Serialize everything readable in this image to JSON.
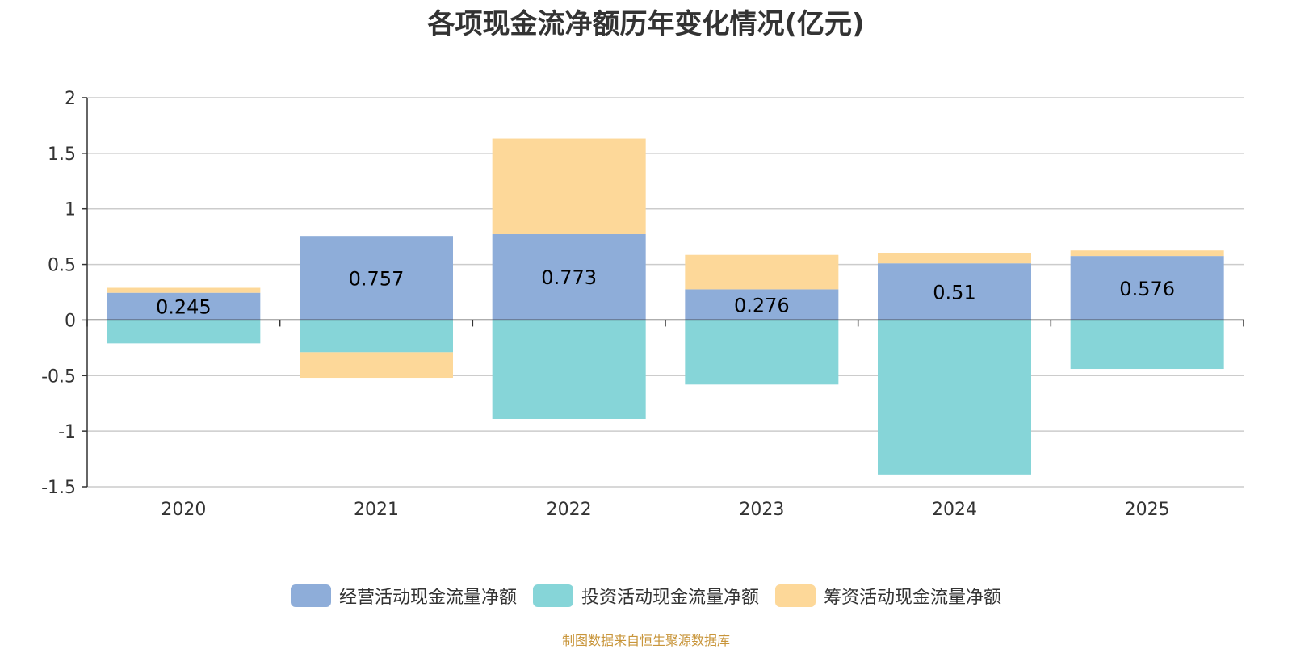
{
  "chart_data": {
    "type": "bar",
    "stacked": true,
    "title": "各项现金流净额历年变化情况(亿元)",
    "categories": [
      "2020",
      "2021",
      "2022",
      "2023",
      "2024",
      "2025"
    ],
    "series": [
      {
        "name": "经营活动现金流量净额",
        "color": "#8eadd9",
        "values": [
          0.245,
          0.757,
          0.773,
          0.276,
          0.51,
          0.576
        ]
      },
      {
        "name": "投资活动现金流量净额",
        "color": "#86d5d8",
        "values": [
          -0.21,
          -0.29,
          -0.89,
          -0.58,
          -1.39,
          -0.44
        ]
      },
      {
        "name": "筹资活动现金流量净额",
        "color": "#fdd899",
        "values": [
          0.045,
          -0.23,
          0.86,
          0.31,
          0.09,
          0.05
        ]
      }
    ],
    "data_labels": [
      "0.245",
      "0.757",
      "0.773",
      "0.276",
      "0.51",
      "0.576"
    ],
    "y_ticks": [
      "2",
      "1.5",
      "1",
      "0.5",
      "0",
      "-0.5",
      "-1",
      "-1.5"
    ],
    "ylim": [
      -1.5,
      2
    ],
    "grid": true,
    "legend_position": "bottom"
  },
  "source": "制图数据来自恒生聚源数据库"
}
